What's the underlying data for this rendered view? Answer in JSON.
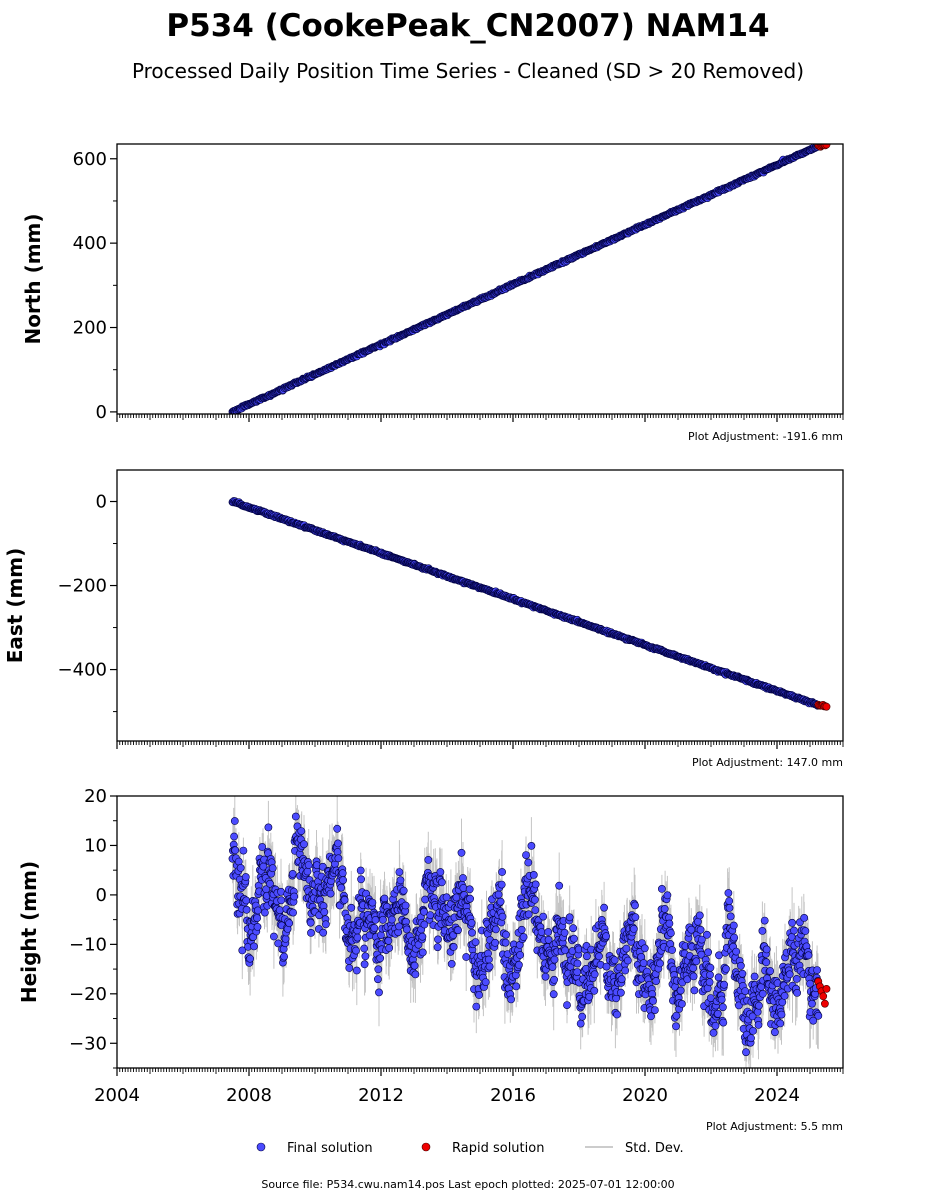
{
  "figure": {
    "title": "P534 (CookePeak_CN2007) NAM14",
    "subtitle": "Processed Daily Position Time Series - Cleaned (SD > 20 Removed)",
    "source_note": "Source file: P534.cwu.nam14.pos  Last epoch plotted: 2025-07-01 12:00:00"
  },
  "legend": {
    "final": "Final solution",
    "rapid": "Rapid solution",
    "std": "Std. Dev."
  },
  "colors": {
    "final_fill": "#4b4bff",
    "final_edge": "#000040",
    "rapid": "#ee0000",
    "std": "#bbbbbb",
    "axis": "#000000"
  },
  "chart_data": [
    {
      "type": "scatter",
      "id": "north",
      "ylabel": "North (mm)",
      "adjustment": "Plot Adjustment: -191.6 mm",
      "xlim": [
        2004,
        2026
      ],
      "ylim": [
        -5,
        635
      ],
      "yticks": [
        0,
        200,
        400,
        600
      ],
      "ytick_labels": [
        "0",
        "200",
        "400",
        "600"
      ],
      "yminor_step": 100,
      "show_xticklabels": false,
      "final_series": {
        "name": "Final solution",
        "x_start": 2007.5,
        "x_end": 2025.25,
        "y_start": 0,
        "y_end": 630,
        "noise_sd": 1.2,
        "std_dev": 1.5
      },
      "rapid_series": {
        "name": "Rapid solution",
        "x_start": 2025.25,
        "x_end": 2025.5,
        "y_start": 630,
        "y_end": 632,
        "noise_sd": 1.2
      }
    },
    {
      "type": "scatter",
      "id": "east",
      "ylabel": "East (mm)",
      "adjustment": "Plot Adjustment: 147.0 mm",
      "xlim": [
        2004,
        2026
      ],
      "ylim": [
        -570,
        75
      ],
      "yticks": [
        0,
        -200,
        -400
      ],
      "ytick_labels": [
        "0",
        "−200",
        "−400"
      ],
      "yminor_step": 100,
      "show_xticklabels": false,
      "final_series": {
        "name": "Final solution",
        "x_start": 2007.5,
        "x_end": 2025.25,
        "y_start": 0,
        "y_end": -485,
        "noise_sd": 1.2,
        "std_dev": 1.5
      },
      "rapid_series": {
        "name": "Rapid solution",
        "x_start": 2025.25,
        "x_end": 2025.5,
        "y_start": -485,
        "y_end": -487,
        "noise_sd": 1.2
      }
    },
    {
      "type": "scatter",
      "id": "height",
      "ylabel": "Height (mm)",
      "adjustment": "Plot Adjustment: 5.5 mm",
      "xlim": [
        2004,
        2026
      ],
      "ylim": [
        -35,
        20
      ],
      "yticks": [
        20,
        10,
        0,
        -10,
        -20,
        -30
      ],
      "ytick_labels": [
        "20",
        "10",
        "0",
        "−10",
        "−20",
        "−30"
      ],
      "yminor_step": 5,
      "show_xticklabels": true,
      "xticks": [
        2004,
        2008,
        2012,
        2016,
        2020,
        2024
      ],
      "xtick_labels": [
        "2004",
        "2008",
        "2012",
        "2016",
        "2020",
        "2024"
      ],
      "final_series": {
        "name": "Final solution",
        "x_start": 2007.5,
        "x_end": 2025.25,
        "y_start": 0,
        "y_end": -18,
        "seasonal_amp": 5,
        "noise_sd": 4.5,
        "std_dev": 5
      },
      "rapid_series": {
        "name": "Rapid solution",
        "x_start": 2025.25,
        "x_end": 2025.5,
        "values": [
          -17.5,
          -18.5,
          -19.5,
          -20.5,
          -22,
          -19
        ]
      }
    }
  ]
}
